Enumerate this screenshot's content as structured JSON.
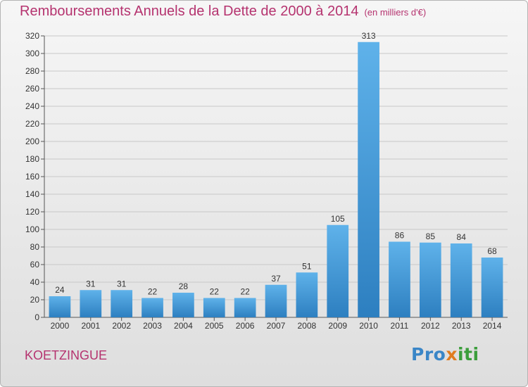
{
  "title": "Remboursements Annuels de la Dette de 2000 à 2014",
  "subtitle": "(en milliers d'€)",
  "town": "KOETZINGUE",
  "logo": {
    "part1": "Pro",
    "part2": "x",
    "part3": "iti"
  },
  "colors": {
    "title": "#b5336f",
    "bar_light": "#5fb2ea",
    "bar_dark": "#2d7fc0"
  },
  "chart_data": {
    "type": "bar",
    "categories": [
      "2000",
      "2001",
      "2002",
      "2003",
      "2004",
      "2005",
      "2006",
      "2007",
      "2008",
      "2009",
      "2010",
      "2011",
      "2012",
      "2013",
      "2014"
    ],
    "values": [
      24,
      31,
      31,
      22,
      28,
      22,
      22,
      37,
      51,
      105,
      313,
      86,
      85,
      84,
      68
    ],
    "data_labels": [
      "24",
      "31",
      "31",
      "22",
      "28",
      "22",
      "22",
      "37",
      "51",
      "105",
      "313",
      "86",
      "85",
      "84",
      "68"
    ],
    "yticks": [
      0,
      20,
      40,
      60,
      80,
      100,
      120,
      140,
      160,
      180,
      200,
      220,
      240,
      260,
      280,
      300,
      320
    ],
    "ylim": [
      0,
      320
    ],
    "grid": true,
    "legend": "none"
  }
}
